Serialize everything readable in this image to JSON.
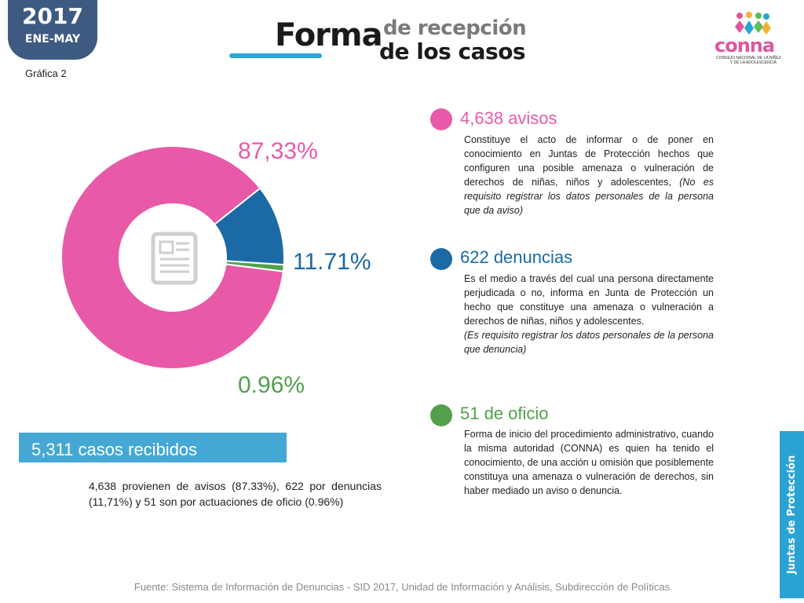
{
  "header": {
    "year": "2017",
    "period": "ENE-MAY",
    "chart_number": "Gráfica 2",
    "title_main": "Forma",
    "title_line1": "de recepción",
    "title_line2": "de los casos"
  },
  "logo": {
    "word": "conna",
    "tagline1": "CONSEJO NACIONAL DE LA NIÑEZ",
    "tagline2": "Y DE LA ADOLESCENCIA"
  },
  "colors": {
    "avisos": "#e85aa8",
    "denuncias": "#1b6aa5",
    "oficio": "#52a04a",
    "accent": "#2aa3d4",
    "badge": "#3e5a80"
  },
  "chart_data": {
    "type": "pie",
    "variant": "donut",
    "series": [
      {
        "value": 4638,
        "percent_label": "87,33%",
        "color": "#e85aa8"
      },
      {
        "value": 622,
        "percent_label": "11.71%",
        "color": "#1b6aa5"
      },
      {
        "value": 51,
        "percent_label": "0.96%",
        "color": "#52a04a"
      }
    ],
    "center_icon": "document-icon"
  },
  "categories": [
    {
      "title": "4,638 avisos",
      "description": "Constituye el acto de informar o de poner en conocimiento en Juntas de Protección hechos que configuren una posible amenaza o vulneración de derechos de niñas, niños y adolescentes,",
      "description_italic": "(No es requisito registrar los datos personales de la persona que da aviso)"
    },
    {
      "title": "622 denuncias",
      "description": "Es el medio a través del cual una persona directamente perjudicada o no, informa en Junta de Protección un hecho que constituye una amenaza o vulneración a derechos de niñas, niños y adolescentes.",
      "description_italic": "(Es requisito registrar los datos personales de la persona que denuncia)"
    },
    {
      "title": "51 de oficio",
      "description": "Forma de inicio del procedimiento administrativo, cuando la misma autoridad (CONNA)  es quien ha tenido el conocimiento, de una acción u omisión que posiblemente constituya una amenaza o vulneración de derechos, sin haber mediado un aviso o denuncia.",
      "description_italic": ""
    }
  ],
  "total": {
    "label": "5,311 casos recibidos",
    "summary": "4,638 provienen de avisos (87.33%), 622 por denuncias (11,71%) y 51 son por actuaciones de oficio (0.96%)"
  },
  "side_tab": "Juntas de Protección",
  "footer": {
    "source": "Fuente: Sistema de Información de Denuncias - SID 2017, Unidad de Información y Análisis, Subdirección de Políticas"
  }
}
